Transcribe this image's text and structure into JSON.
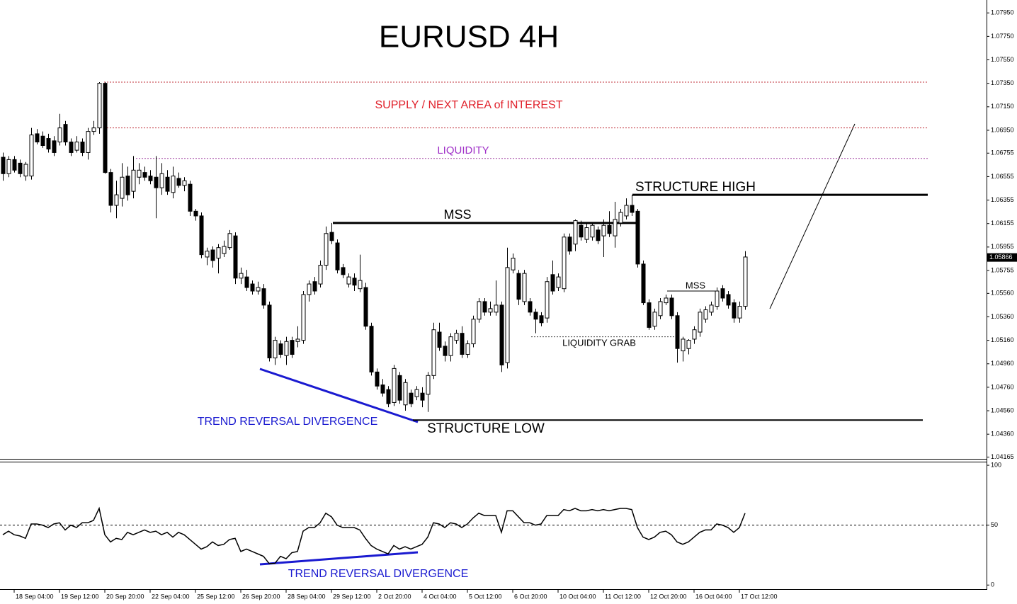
{
  "chart_data": [
    {
      "type": "candlestick",
      "title": "EURUSD 4H",
      "ylim": [
        1.0415,
        1.0806
      ],
      "yticks": [
        {
          "value": 1.0795,
          "label": "1.07950"
        },
        {
          "value": 1.0775,
          "label": "1.07750"
        },
        {
          "value": 1.0755,
          "label": "1.07550"
        },
        {
          "value": 1.0735,
          "label": "1.07350"
        },
        {
          "value": 1.0715,
          "label": "1.07150"
        },
        {
          "value": 1.0695,
          "label": "1.06950"
        },
        {
          "value": 1.06755,
          "label": "1.06755"
        },
        {
          "value": 1.06555,
          "label": "1.06555"
        },
        {
          "value": 1.06355,
          "label": "1.06355"
        },
        {
          "value": 1.06155,
          "label": "1.06155"
        },
        {
          "value": 1.05955,
          "label": "1.05955"
        },
        {
          "value": 1.05755,
          "label": "1.05755"
        },
        {
          "value": 1.0556,
          "label": "1.05560"
        },
        {
          "value": 1.0536,
          "label": "1.05360"
        },
        {
          "value": 1.0516,
          "label": "1.05160"
        },
        {
          "value": 1.0496,
          "label": "1.04960"
        },
        {
          "value": 1.0476,
          "label": "1.04760"
        },
        {
          "value": 1.0456,
          "label": "1.04560"
        },
        {
          "value": 1.0436,
          "label": "1.04360"
        },
        {
          "value": 1.04165,
          "label": "1.04165"
        }
      ],
      "current_price": {
        "value": 1.05866,
        "label": "1.05866"
      },
      "bull_color": "#ffffff",
      "bear_color": "#000000",
      "categories": [
        null,
        null,
        "18 Sep 04:00",
        null,
        null,
        null,
        null,
        null,
        null,
        null,
        "19 Sep 12:00",
        null,
        null,
        null,
        null,
        null,
        null,
        null,
        "20 Sep 20:00",
        null,
        null,
        null,
        null,
        null,
        null,
        null,
        "22 Sep 04:00",
        null,
        null,
        null,
        null,
        null,
        null,
        null,
        "25 Sep 12:00",
        null,
        null,
        null,
        null,
        null,
        null,
        null,
        "26 Sep 20:00",
        null,
        null,
        null,
        null,
        null,
        null,
        null,
        "28 Sep 04:00",
        null,
        null,
        null,
        null,
        null,
        null,
        null,
        "29 Sep 12:00",
        null,
        null,
        null,
        null,
        null,
        null,
        null,
        "2 Oct 20:00",
        null,
        null,
        null,
        null,
        null,
        null,
        null,
        "4 Oct 04:00",
        null,
        null,
        null,
        null,
        null,
        null,
        null,
        "5 Oct 12:00",
        null,
        null,
        null,
        null,
        null,
        null,
        null,
        "6 Oct 20:00",
        null,
        null,
        null,
        null,
        null,
        null,
        null,
        "10 Oct 04:00",
        null,
        null,
        null,
        null,
        null,
        null,
        null,
        "11 Oct 12:00",
        null,
        null,
        null,
        null,
        null,
        null,
        null,
        "12 Oct 20:00",
        null,
        null,
        null,
        null,
        null,
        null,
        null,
        "16 Oct 04:00",
        null,
        null,
        null,
        null,
        null,
        null,
        null,
        "17 Oct 12:00",
        null
      ],
      "ohlc": [
        [
          1.0672,
          1.0676,
          1.0652,
          1.0658
        ],
        [
          1.0658,
          1.0673,
          1.0655,
          1.067
        ],
        [
          1.067,
          1.0673,
          1.0659,
          1.0661
        ],
        [
          1.0667,
          1.067,
          1.0655,
          1.0658
        ],
        [
          1.0656,
          1.0668,
          1.0652,
          1.0666
        ],
        [
          1.0656,
          1.0697,
          1.0653,
          1.0691
        ],
        [
          1.0692,
          1.0696,
          1.0683,
          1.0685
        ],
        [
          1.069,
          1.0694,
          1.068,
          1.0682
        ],
        [
          1.0688,
          1.0692,
          1.0676,
          1.0679
        ],
        [
          1.0686,
          1.069,
          1.0673,
          1.0676
        ],
        [
          1.0685,
          1.0709,
          1.0682,
          1.0697
        ],
        [
          1.07,
          1.0703,
          1.0682,
          1.0685
        ],
        [
          1.0685,
          1.0688,
          1.0673,
          1.0676
        ],
        [
          1.0678,
          1.069,
          1.0676,
          1.0685
        ],
        [
          1.0685,
          1.0688,
          1.0673,
          1.0676
        ],
        [
          1.0676,
          1.0697,
          1.067,
          1.0694
        ],
        [
          1.0694,
          1.0703,
          1.0691,
          1.0697
        ],
        [
          1.0697,
          1.0736,
          1.0692,
          1.0735
        ],
        [
          1.0735,
          1.0736,
          1.0658,
          1.0659
        ],
        [
          1.0659,
          1.0662,
          1.0625,
          1.0631
        ],
        [
          1.0631,
          1.0652,
          1.062,
          1.064
        ],
        [
          1.0637,
          1.0667,
          1.063,
          1.0655
        ],
        [
          1.0656,
          1.0664,
          1.0635,
          1.064
        ],
        [
          1.0643,
          1.0673,
          1.0637,
          1.0661
        ],
        [
          1.0655,
          1.0667,
          1.0649,
          1.0661
        ],
        [
          1.0659,
          1.0664,
          1.0652,
          1.0655
        ],
        [
          1.0656,
          1.0661,
          1.0649,
          1.0652
        ],
        [
          1.0655,
          1.0673,
          1.062,
          1.0646
        ],
        [
          1.0646,
          1.0667,
          1.064,
          1.0658
        ],
        [
          1.0655,
          1.0661,
          1.064,
          1.0643
        ],
        [
          1.0642,
          1.0664,
          1.0637,
          1.0656
        ],
        [
          1.0654,
          1.0659,
          1.0646,
          1.0648
        ],
        [
          1.0648,
          1.0655,
          1.0643,
          1.0652
        ],
        [
          1.0649,
          1.0652,
          1.0622,
          1.0626
        ],
        [
          1.0626,
          1.0628,
          1.0618,
          1.0622
        ],
        [
          1.0622,
          1.0625,
          1.0586,
          1.0589
        ],
        [
          1.0587,
          1.0595,
          1.058,
          1.0592
        ],
        [
          1.0593,
          1.0596,
          1.0578,
          1.0584
        ],
        [
          1.0586,
          1.0598,
          1.0573,
          1.0595
        ],
        [
          1.059,
          1.0601,
          1.0587,
          1.0596
        ],
        [
          1.0595,
          1.061,
          1.0593,
          1.0607
        ],
        [
          1.0605,
          1.0608,
          1.0564,
          1.0569
        ],
        [
          1.0569,
          1.0578,
          1.0564,
          1.0573
        ],
        [
          1.057,
          1.0576,
          1.0558,
          1.0561
        ],
        [
          1.0564,
          1.0567,
          1.0555,
          1.0558
        ],
        [
          1.0558,
          1.0566,
          1.0555,
          1.0561
        ],
        [
          1.056,
          1.0564,
          1.0543,
          1.0546
        ],
        [
          1.0546,
          1.0549,
          1.0498,
          1.0501
        ],
        [
          1.0501,
          1.0519,
          1.0495,
          1.0516
        ],
        [
          1.0513,
          1.0516,
          1.0501,
          1.0504
        ],
        [
          1.0503,
          1.0519,
          1.0495,
          1.0515
        ],
        [
          1.0516,
          1.0519,
          1.0501,
          1.0504
        ],
        [
          1.0515,
          1.0528,
          1.051,
          1.0517
        ],
        [
          1.0516,
          1.0558,
          1.0513,
          1.0555
        ],
        [
          1.0555,
          1.0567,
          1.0549,
          1.0564
        ],
        [
          1.0566,
          1.057,
          1.0555,
          1.0558
        ],
        [
          1.0564,
          1.0584,
          1.0561,
          1.058
        ],
        [
          1.058,
          1.0613,
          1.0576,
          1.0607
        ],
        [
          1.0608,
          1.0616,
          1.0598,
          1.0601
        ],
        [
          1.0599,
          1.0602,
          1.0573,
          1.0576
        ],
        [
          1.0578,
          1.0581,
          1.0569,
          1.0572
        ],
        [
          1.0564,
          1.0573,
          1.0561,
          1.057
        ],
        [
          1.0569,
          1.0573,
          1.0558,
          1.0563
        ],
        [
          1.056,
          1.0589,
          1.0557,
          1.0567
        ],
        [
          1.0561,
          1.0565,
          1.0525,
          1.0528
        ],
        [
          1.0528,
          1.0531,
          1.0486,
          1.0489
        ],
        [
          1.0489,
          1.0492,
          1.0474,
          1.0477
        ],
        [
          1.0478,
          1.0483,
          1.0468,
          1.0471
        ],
        [
          1.0474,
          1.0477,
          1.0459,
          1.0462
        ],
        [
          1.0463,
          1.0495,
          1.046,
          1.0492
        ],
        [
          1.0486,
          1.0489,
          1.0462,
          1.0465
        ],
        [
          1.0461,
          1.0483,
          1.0456,
          1.048
        ],
        [
          1.0471,
          1.0474,
          1.0459,
          1.0462
        ],
        [
          1.0468,
          1.0477,
          1.0465,
          1.0474
        ],
        [
          1.0471,
          1.0476,
          1.0459,
          1.0465
        ],
        [
          1.047,
          1.0489,
          1.0455,
          1.0486
        ],
        [
          1.0486,
          1.0531,
          1.0483,
          1.0525
        ],
        [
          1.0523,
          1.0531,
          1.0507,
          1.051
        ],
        [
          1.0511,
          1.0515,
          1.0498,
          1.0503
        ],
        [
          1.0503,
          1.0522,
          1.0498,
          1.0519
        ],
        [
          1.0516,
          1.0525,
          1.0513,
          1.0522
        ],
        [
          1.0522,
          1.0528,
          1.0501,
          1.0504
        ],
        [
          1.0504,
          1.0516,
          1.0501,
          1.0513
        ],
        [
          1.0513,
          1.0537,
          1.051,
          1.0534
        ],
        [
          1.0534,
          1.0552,
          1.0531,
          1.0549
        ],
        [
          1.0549,
          1.0552,
          1.0537,
          1.054
        ],
        [
          1.054,
          1.0549,
          1.0537,
          1.0543
        ],
        [
          1.054,
          1.0567,
          1.0537,
          1.0546
        ],
        [
          1.0546,
          1.0549,
          1.0489,
          1.0495
        ],
        [
          1.0497,
          1.0595,
          1.0492,
          1.0578
        ],
        [
          1.0576,
          1.059,
          1.0573,
          1.0586
        ],
        [
          1.0573,
          1.0576,
          1.0546,
          1.0551
        ],
        [
          1.0549,
          1.0576,
          1.0546,
          1.0573
        ],
        [
          1.0549,
          1.0552,
          1.0537,
          1.054
        ],
        [
          1.054,
          1.0543,
          1.0522,
          1.0534
        ],
        [
          1.0537,
          1.054,
          1.0528,
          1.0531
        ],
        [
          1.0535,
          1.057,
          1.0531,
          1.0566
        ],
        [
          1.0572,
          1.0584,
          1.0555,
          1.0558
        ],
        [
          1.0561,
          1.0573,
          1.0558,
          1.057
        ],
        [
          1.056,
          1.0607,
          1.0557,
          1.0604
        ],
        [
          1.0604,
          1.0607,
          1.0589,
          1.0592
        ],
        [
          1.0598,
          1.0619,
          1.0592,
          1.0618
        ],
        [
          1.0614,
          1.0618,
          1.0601,
          1.0604
        ],
        [
          1.0602,
          1.0616,
          1.0599,
          1.0612
        ],
        [
          1.0604,
          1.0616,
          1.0601,
          1.0614
        ],
        [
          1.061,
          1.0613,
          1.0598,
          1.0601
        ],
        [
          1.0605,
          1.0619,
          1.0587,
          1.0614
        ],
        [
          1.0614,
          1.0626,
          1.0604,
          1.0607
        ],
        [
          1.0605,
          1.0634,
          1.0595,
          1.0619
        ],
        [
          1.0616,
          1.0628,
          1.0613,
          1.0625
        ],
        [
          1.0622,
          1.0637,
          1.0619,
          1.0631
        ],
        [
          1.0631,
          1.064,
          1.0622,
          1.0625
        ],
        [
          1.0626,
          1.0628,
          1.0578,
          1.0581
        ],
        [
          1.0581,
          1.0584,
          1.0546,
          1.0548
        ],
        [
          1.0548,
          1.0551,
          1.0525,
          1.0527
        ],
        [
          1.0528,
          1.0543,
          1.0525,
          1.054
        ],
        [
          1.0537,
          1.0552,
          1.0534,
          1.0549
        ],
        [
          1.0548,
          1.0555,
          1.0546,
          1.0552
        ],
        [
          1.0552,
          1.0555,
          1.0534,
          1.0537
        ],
        [
          1.0537,
          1.054,
          1.0497,
          1.0509
        ],
        [
          1.0507,
          1.0519,
          1.0498,
          1.0517
        ],
        [
          1.0509,
          1.0517,
          1.0504,
          1.0516
        ],
        [
          1.0517,
          1.0528,
          1.0513,
          1.0525
        ],
        [
          1.0523,
          1.0543,
          1.0519,
          1.054
        ],
        [
          1.0534,
          1.0545,
          1.0531,
          1.0542
        ],
        [
          1.054,
          1.0549,
          1.0537,
          1.0546
        ],
        [
          1.0545,
          1.0561,
          1.0542,
          1.0558
        ],
        [
          1.056,
          1.0563,
          1.0549,
          1.0552
        ],
        [
          1.0555,
          1.0558,
          1.0543,
          1.0546
        ],
        [
          1.0548,
          1.0551,
          1.0531,
          1.0535
        ],
        [
          1.0535,
          1.0549,
          1.0531,
          1.0545
        ],
        [
          1.0545,
          1.0592,
          1.0542,
          1.0587
        ]
      ],
      "hlines": [
        {
          "value": 1.0736,
          "color": "#c0303a",
          "dash": "2,2",
          "width": 1
        },
        {
          "value": 1.0697,
          "color": "#c0303a",
          "dash": "2,2",
          "width": 1
        },
        {
          "value": 1.0671,
          "color": "#a040a0",
          "dash": "2,2",
          "width": 1
        },
        {
          "value": 1.064,
          "color": "#000000",
          "dash": "none",
          "width": 3
        },
        {
          "value": 1.0616,
          "color": "#000000",
          "dash": "none",
          "width": 3
        },
        {
          "value": 1.0448,
          "color": "#000000",
          "dash": "none",
          "width": 2
        },
        {
          "value": 1.0519,
          "color": "#444444",
          "dash": "2,2",
          "width": 1
        },
        {
          "value": 1.0558,
          "color": "#000000",
          "dash": "none",
          "width": 1
        }
      ],
      "annotations": [
        {
          "text": "SUPPLY / NEXT AREA of INTEREST",
          "color": "#e0202a"
        },
        {
          "text": "LIQUIDITY",
          "color": "#a030c8"
        },
        {
          "text": "STRUCTURE HIGH",
          "color": "#000000"
        },
        {
          "text": "MSS",
          "color": "#000000"
        },
        {
          "text": "MSS",
          "color": "#000000"
        },
        {
          "text": "LIQUIDITY GRAB",
          "color": "#000000"
        },
        {
          "text": "TREND REVERSAL DIVERGENCE",
          "color": "#1a1ad0"
        },
        {
          "text": "STRUCTURE LOW",
          "color": "#000000"
        }
      ]
    },
    {
      "type": "line",
      "color": "#000000",
      "ylim": [
        -4,
        103
      ],
      "yticks": [
        0,
        50,
        100
      ],
      "levels": [
        50
      ],
      "values": [
        42,
        45,
        42,
        41,
        39,
        51,
        51,
        50,
        48,
        51,
        52,
        46,
        50,
        48,
        52,
        52,
        54,
        64,
        42,
        36,
        39,
        38,
        44,
        42,
        44,
        46,
        44,
        45,
        42,
        44,
        40,
        44,
        42,
        38,
        34,
        30,
        32,
        36,
        33,
        34,
        38,
        39,
        28,
        30,
        28,
        26,
        24,
        18,
        18,
        24,
        22,
        27,
        28,
        45,
        48,
        48,
        52,
        60,
        57,
        50,
        48,
        48,
        48,
        46,
        39,
        33,
        30,
        28,
        26,
        33,
        30,
        32,
        30,
        32,
        34,
        40,
        52,
        51,
        48,
        52,
        51,
        48,
        51,
        56,
        60,
        58,
        58,
        58,
        44,
        62,
        62,
        57,
        52,
        52,
        50,
        51,
        58,
        58,
        58,
        63,
        62,
        64,
        62,
        62,
        63,
        62,
        63,
        62,
        63,
        64,
        64,
        63,
        48,
        40,
        38,
        40,
        44,
        45,
        42,
        36,
        34,
        36,
        40,
        44,
        46,
        46,
        51,
        50,
        48,
        44,
        48,
        60
      ],
      "annotations": [
        {
          "text": "TREND REVERSAL DIVERGENCE",
          "color": "#1a1ad0"
        }
      ]
    }
  ]
}
